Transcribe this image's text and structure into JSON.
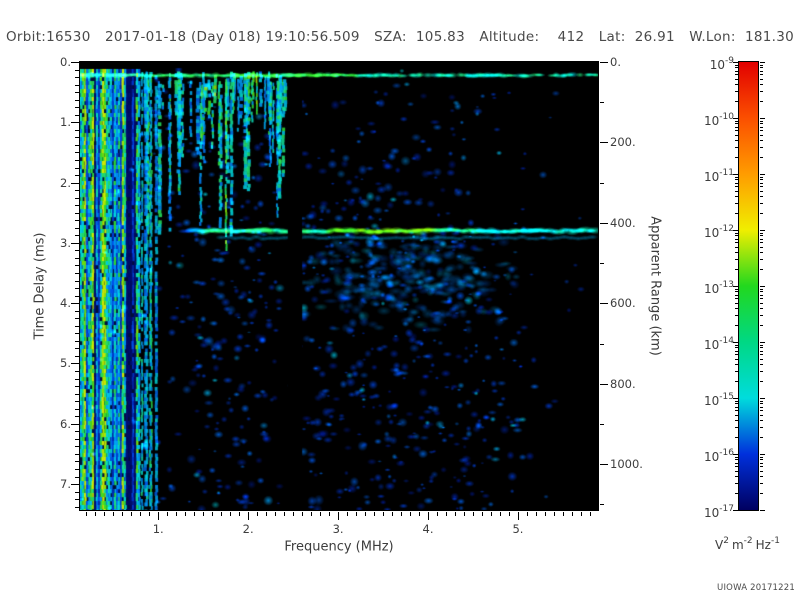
{
  "header": {
    "orbit": "Orbit:16530",
    "datetime": "2017-01-18 (Day 018) 19:10:56.509",
    "sza": "SZA:  105.83",
    "altitude": "Altitude:    412",
    "lat": "Lat:  26.91",
    "wlon": "W.Lon:  181.30"
  },
  "footer": {
    "credit": "UIOWA 20171221"
  },
  "chart_data": {
    "type": "heatmap",
    "title": "",
    "xlabel": "Frequency (MHz)",
    "ylabel": "Time Delay (ms)",
    "y2label": "Apparent Range (km)",
    "xlim": [
      0.13,
      5.89
    ],
    "ylim": [
      0,
      7.43
    ],
    "y2lim": [
      0,
      1114
    ],
    "x_ticks": [
      1,
      2,
      3,
      4,
      5
    ],
    "x_tick_labels": [
      "1.",
      "2.",
      "3.",
      "4.",
      "5."
    ],
    "x_minor_step": 0.1,
    "y_ticks": [
      0,
      1,
      2,
      3,
      4,
      5,
      6,
      7
    ],
    "y_tick_labels": [
      "0.",
      "1.",
      "2.",
      "3.",
      "4.",
      "5.",
      "6.",
      "7."
    ],
    "y_minor_step": 0.125,
    "y2_ticks": [
      0,
      200,
      400,
      600,
      800,
      1000
    ],
    "y2_tick_labels": [
      "0.",
      "200.",
      "400.",
      "600.",
      "800.",
      "1000."
    ],
    "y2_minor_step": 100,
    "grid": false,
    "legend": "colorbar-right",
    "colorbar": {
      "scale": "log",
      "mantissa_base": "10",
      "exponents": [
        -9,
        -10,
        -11,
        -12,
        -13,
        -14,
        -15,
        -16,
        -17
      ],
      "units_parts": [
        {
          "base": "V",
          "exp": "2"
        },
        {
          "base": "m",
          "exp": "-2"
        },
        {
          "base": "Hz",
          "exp": "-1"
        }
      ],
      "gradient": [
        "#e10000",
        "#fb4f00",
        "#ff9c00",
        "#f0ee00",
        "#22d81e",
        "#00d884",
        "#00dcdc",
        "#0030dc",
        "#000060"
      ]
    },
    "features": [
      {
        "name": "plasma-oscillation-stripes",
        "kind": "stripes",
        "freq": [
          0.13,
          0.78
        ],
        "delay": [
          0.1,
          7.43
        ],
        "bright_lines_freq": [
          0.174,
          0.263,
          0.386,
          0.6
        ],
        "note": "dense full-height vertical stripes (cyan/green/yellow) at low frequencies"
      },
      {
        "name": "first-return-band",
        "kind": "hband",
        "delay": 0.22,
        "freq": [
          0.13,
          5.89
        ],
        "level": 0.64,
        "note": "bright green-cyan horizontal line across all frequencies near zero delay"
      },
      {
        "name": "echo-streaks",
        "kind": "streaks",
        "freq": [
          0.78,
          2.4
        ],
        "delay": [
          0.15,
          3.4
        ],
        "count": 60,
        "note": "short vertical cyan/green streaks hanging from the top band"
      },
      {
        "name": "surface-reflection-band",
        "kind": "hband",
        "delay": 2.8,
        "freq": [
          1.3,
          5.89
        ],
        "level": 0.7,
        "apparent_range_km": 420,
        "bright_freq": [
          2.9,
          4.1
        ],
        "note": "strong green surface echo at ~2.8 ms / ~420 km apparent range"
      },
      {
        "name": "subsurface-scatter-cloud",
        "kind": "cloud",
        "freq": [
          2.5,
          5.1
        ],
        "delay": [
          2.85,
          4.6
        ],
        "level": 0.45,
        "note": "diffuse cyan scatter below the surface echo"
      },
      {
        "name": "telemetry-gap",
        "kind": "vgap",
        "freq": [
          2.44,
          2.6
        ],
        "note": "black column with no data"
      },
      {
        "name": "noise-speckle",
        "kind": "speckle",
        "level": 0.3,
        "note": "scattered blue noise blobs over black background"
      }
    ]
  }
}
